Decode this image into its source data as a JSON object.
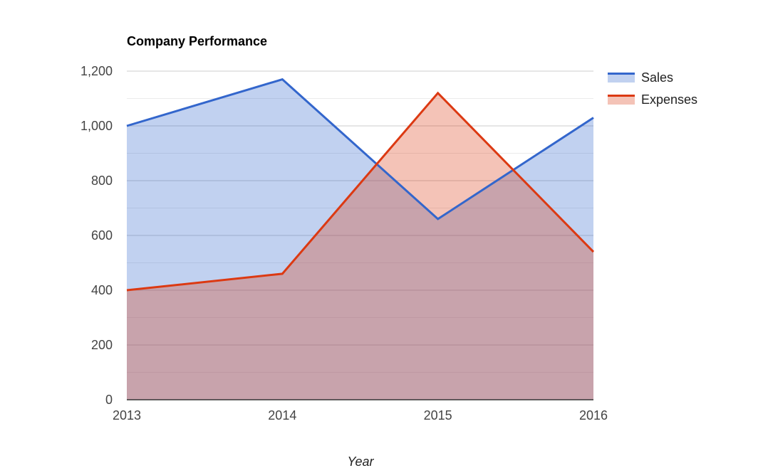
{
  "chart_data": {
    "type": "area",
    "title": "Company Performance",
    "xlabel": "Year",
    "ylabel": "",
    "categories": [
      "2013",
      "2014",
      "2015",
      "2016"
    ],
    "ylim": [
      0,
      1200
    ],
    "yticks": [
      0,
      200,
      400,
      600,
      800,
      1000,
      1200
    ],
    "ytick_labels": [
      "0",
      "200",
      "400",
      "600",
      "800",
      "1,000",
      "1,200"
    ],
    "grid": true,
    "legend_position": "right",
    "series": [
      {
        "name": "Sales",
        "values": [
          1000,
          1170,
          660,
          1030
        ],
        "color": "#3366cc"
      },
      {
        "name": "Expenses",
        "values": [
          400,
          460,
          1120,
          540
        ],
        "color": "#dc3912"
      }
    ]
  }
}
